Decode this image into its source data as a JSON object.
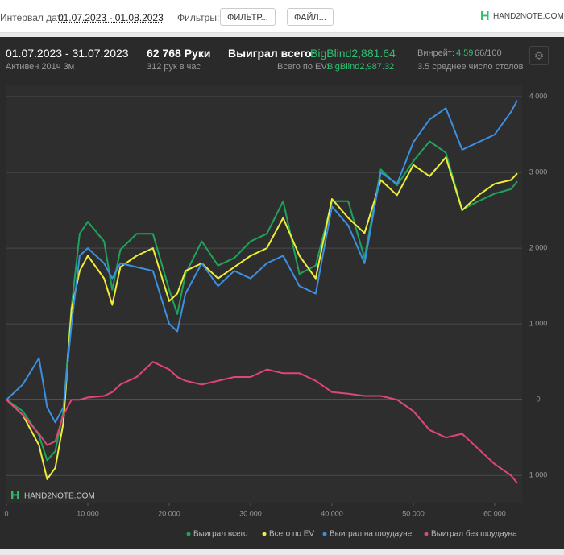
{
  "header": {
    "date_label": "Интервал дат:",
    "date_range": "01.07.2023 - 01.08.2023",
    "filters_label": "Фильтры:",
    "filter_button": "ФИЛЬТР...",
    "file_button": "ФАЙЛ...",
    "logo": "HAND2NOTE.COM"
  },
  "stats": {
    "period": "01.07.2023 - 31.07.2023",
    "active": "Активен 201ч 3м",
    "hands": "62 768 Руки",
    "hands_per_hour": "312 рук в час",
    "won_label": "Выиграл всего:",
    "won_value": "BigBlind2,881.64",
    "ev_label": "Всего по EV:",
    "ev_value": "BigBlind2,987.32",
    "winrate_label": "Винрейт:",
    "winrate_value": "4.59",
    "winrate_unit": "66/100",
    "tables": "3.5 среднее число столов"
  },
  "watermark": "HAND2NOTE.COM",
  "chart_data": {
    "type": "line",
    "x": [
      0,
      2000,
      4000,
      5000,
      6000,
      7000,
      8000,
      9000,
      10000,
      12000,
      13000,
      14000,
      16000,
      18000,
      20000,
      21000,
      22000,
      24000,
      26000,
      28000,
      30000,
      32000,
      34000,
      36000,
      38000,
      40000,
      42000,
      44000,
      46000,
      48000,
      50000,
      52000,
      54000,
      56000,
      58000,
      60000,
      62000,
      62768
    ],
    "series": [
      {
        "name": "Выиграл всего",
        "color": "#1fa35c",
        "values": [
          0,
          -150,
          -470,
          -800,
          -680,
          -150,
          1230,
          2190,
          2350,
          2090,
          1450,
          1980,
          2190,
          2190,
          1450,
          1130,
          1660,
          2090,
          1770,
          1870,
          2090,
          2190,
          2620,
          1660,
          1770,
          2620,
          2620,
          1870,
          3040,
          2830,
          3150,
          3410,
          3260,
          2510,
          2620,
          2720,
          2780,
          2882
        ]
      },
      {
        "name": "Всего по EV",
        "color": "#eeee3a",
        "values": [
          0,
          -200,
          -600,
          -1050,
          -900,
          -300,
          1200,
          1700,
          1900,
          1600,
          1250,
          1750,
          1900,
          2000,
          1300,
          1400,
          1700,
          1800,
          1600,
          1750,
          1900,
          2000,
          2400,
          1900,
          1600,
          2650,
          2400,
          2200,
          2900,
          2700,
          3100,
          2950,
          3200,
          2500,
          2700,
          2850,
          2900,
          2987
        ]
      },
      {
        "name": "Выиграл на шоудауне",
        "color": "#3d8fe0",
        "values": [
          0,
          200,
          550,
          -100,
          -300,
          -100,
          1000,
          1900,
          2000,
          1800,
          1600,
          1800,
          1750,
          1700,
          1000,
          900,
          1400,
          1800,
          1500,
          1700,
          1600,
          1800,
          1900,
          1500,
          1400,
          2550,
          2300,
          1800,
          3000,
          2850,
          3400,
          3700,
          3850,
          3300,
          3400,
          3500,
          3800,
          3950
        ]
      },
      {
        "name": "Выиграл без шоудауна",
        "color": "#e0457b",
        "values": [
          0,
          -200,
          -450,
          -600,
          -550,
          -200,
          0,
          0,
          30,
          50,
          100,
          200,
          300,
          500,
          400,
          300,
          250,
          200,
          250,
          300,
          300,
          400,
          350,
          350,
          250,
          100,
          80,
          50,
          50,
          0,
          -150,
          -400,
          -500,
          -450,
          -650,
          -850,
          -1000,
          -1100
        ]
      }
    ],
    "xlim": [
      0,
      63366
    ],
    "ylim": [
      -1370,
      4160
    ],
    "xticks": [
      0,
      {
        "value": 10000,
        "label": "10 000"
      },
      {
        "value": 20000,
        "label": "20 000"
      },
      {
        "value": 30000,
        "label": "30 000"
      },
      {
        "value": 40000,
        "label": "40 000"
      },
      {
        "value": 50000,
        "label": "50 000"
      },
      {
        "value": 60000,
        "label": "60 000"
      }
    ],
    "yticks": [
      {
        "value": -1000,
        "label": "1 000"
      },
      0,
      {
        "value": 1000,
        "label": "1 000"
      },
      {
        "value": 2000,
        "label": "2 000"
      },
      {
        "value": 3000,
        "label": "3 000"
      },
      {
        "value": 4000,
        "label": "4 000"
      }
    ],
    "grid": true
  }
}
